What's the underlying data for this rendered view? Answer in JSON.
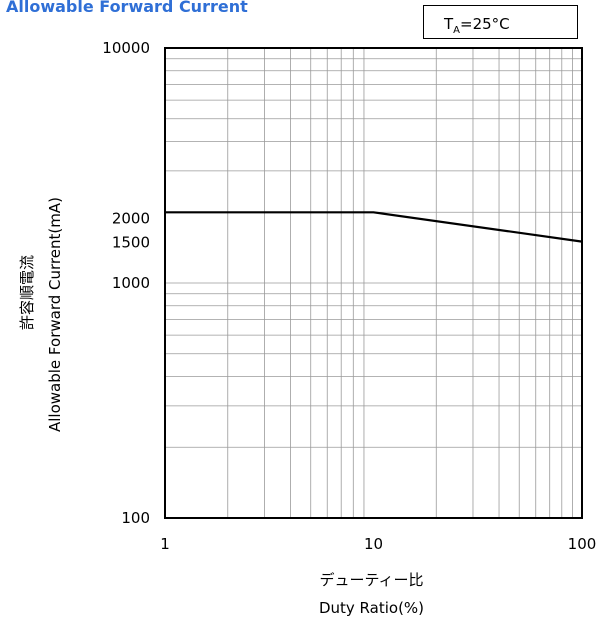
{
  "chart_data": {
    "type": "line",
    "title": "Allowable Forward Current",
    "condition": {
      "prefix": "T",
      "subscript": "A",
      "value": "=25°C"
    },
    "xlabel_jp": "デューティー比",
    "xlabel": "Duty Ratio(%)",
    "ylabel_jp": "許容順電流",
    "ylabel": "Allowable Forward Current(mA)",
    "x_scale": "log",
    "y_scale": "log",
    "xlim": [
      1,
      100
    ],
    "ylim": [
      100,
      10000
    ],
    "x_ticks": [
      "1",
      "10",
      "100"
    ],
    "y_ticks": [
      "100",
      "1000",
      "1500",
      "2000",
      "10000"
    ],
    "grid": true,
    "series": [
      {
        "points": [
          [
            1,
            2000
          ],
          [
            10,
            2000
          ],
          [
            100,
            1500
          ]
        ]
      }
    ]
  }
}
